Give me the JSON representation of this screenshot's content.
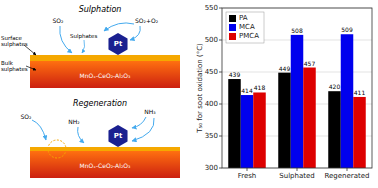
{
  "chart_data": {
    "type": "bar",
    "categories": [
      "Fresh",
      "Sulphated",
      "Regenerated"
    ],
    "series": [
      {
        "name": "PA",
        "color": "#000000",
        "values": [
          439,
          449,
          420
        ]
      },
      {
        "name": "MCA",
        "color": "#0000ee",
        "values": [
          414,
          508,
          509
        ]
      },
      {
        "name": "PMCA",
        "color": "#dd0000",
        "values": [
          418,
          457,
          411
        ]
      }
    ],
    "ylabel": "T₅₀ for soot oxidation (°C)",
    "ylim": [
      300,
      550
    ],
    "yticks": [
      300,
      350,
      400,
      450,
      500,
      550
    ],
    "grid": true,
    "legend": "upper left",
    "data_labels": true,
    "annotations": [
      "Sulphation",
      "Regeneration",
      "Pt",
      "MnOₓ-CeO₂-Al₂O₃",
      "Surface\nsulphates",
      "Bulk\nsulphates",
      "SO₂",
      "Sulphates",
      "SO₂+O₂",
      "NH₂",
      "NH₃"
    ]
  }
}
